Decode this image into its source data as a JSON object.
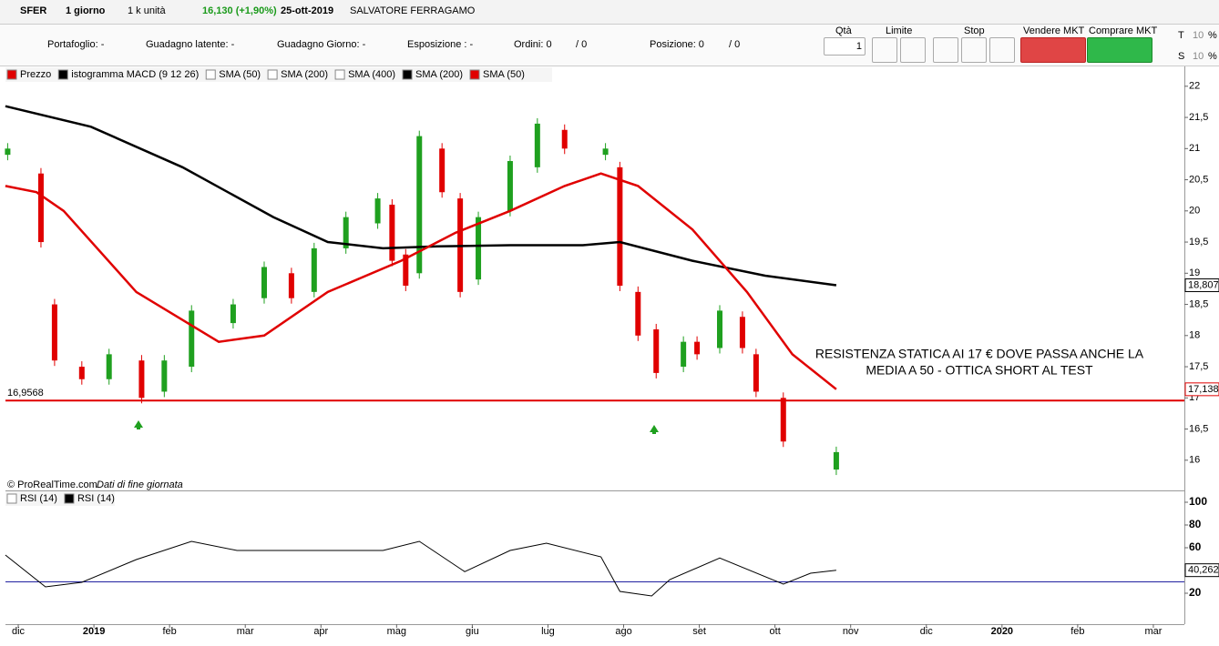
{
  "header": {
    "symbol": "SFER",
    "timeframe": "1 giorno",
    "units": "1 k unità",
    "last": "16,130 (+1,90%)",
    "date": "25-ott-2019",
    "name": "SALVATORE FERRAGAMO"
  },
  "position_bar": {
    "portfolio": "Portafoglio: -",
    "latent": "Guadagno latente: -",
    "day": "Guadagno Giorno: -",
    "exposure": "Esposizione : -",
    "orders": "Ordini: 0",
    "orders2": "/ 0",
    "position": "Posizione: 0",
    "position2": "/ 0"
  },
  "order_panel": {
    "qty_label": "Qtà",
    "qty": "1",
    "limit": "Limite",
    "stop": "Stop",
    "sell": "Vendere MKT",
    "buy": "Comprare MKT",
    "t": "T",
    "t_value": "10",
    "t_unit": "%",
    "s": "S",
    "s_value": "10",
    "s_unit": "%"
  },
  "chart_data": [
    {
      "type": "candlestick",
      "legend_items": [
        "Prezzo",
        "istogramma MACD (9 12 26)",
        "SMA (50)",
        "SMA (200)",
        "SMA (400)",
        "SMA (200)",
        "SMA (50)"
      ],
      "credits": "© ProRealTime.com",
      "credits_note": "Dati di fine giornata",
      "xlim": [
        -0.169,
        15.41
      ],
      "xticks": [
        {
          "value": 0,
          "label": "dic"
        },
        {
          "value": 1,
          "label": "2019"
        },
        {
          "value": 2,
          "label": "feb"
        },
        {
          "value": 3,
          "label": "mar"
        },
        {
          "value": 4,
          "label": "apr"
        },
        {
          "value": 5,
          "label": "mag"
        },
        {
          "value": 6,
          "label": "giu"
        },
        {
          "value": 7,
          "label": "lug"
        },
        {
          "value": 8,
          "label": "ago"
        },
        {
          "value": 9,
          "label": "set"
        },
        {
          "value": 10,
          "label": "ott"
        },
        {
          "value": 11,
          "label": "nov"
        },
        {
          "value": 12,
          "label": "dic"
        },
        {
          "value": 13,
          "label": "2020"
        },
        {
          "value": 14,
          "label": "feb"
        },
        {
          "value": 15,
          "label": "mar"
        }
      ],
      "ylim": [
        15.53,
        22.07
      ],
      "yticks": [
        16,
        {
          "value": 16.5,
          "label": "16,5"
        },
        17,
        {
          "value": 17.5,
          "label": "17,5"
        },
        18,
        {
          "value": 18.5,
          "label": "18,5"
        },
        19,
        {
          "value": 19.5,
          "label": "19,5"
        },
        20,
        {
          "value": 20.5,
          "label": "20,5"
        },
        21,
        {
          "value": 21.5,
          "label": "21,5"
        },
        22
      ],
      "series": [
        {
          "name": "Prezzo",
          "up_color": "#1fa01f",
          "down_color": "#e00000",
          "x": [
            -0.14,
            0.3,
            0.48,
            0.84,
            1.2,
            1.63,
            1.93,
            2.29,
            2.84,
            3.25,
            3.61,
            3.91,
            4.33,
            4.75,
            4.94,
            5.12,
            5.3,
            5.6,
            5.84,
            6.08,
            6.5,
            6.86,
            7.22,
            7.76,
            7.95,
            8.19,
            8.43,
            8.79,
            8.97,
            9.27,
            9.57,
            9.75,
            10.11,
            10.81
          ],
          "open": [
            20.9,
            20.6,
            18.5,
            17.5,
            17.3,
            17.6,
            17.1,
            17.5,
            18.2,
            18.6,
            19.0,
            18.7,
            19.4,
            19.8,
            20.1,
            19.3,
            19.0,
            21.0,
            20.2,
            18.9,
            20.0,
            20.7,
            21.3,
            20.9,
            20.7,
            18.7,
            18.1,
            17.5,
            17.9,
            17.8,
            18.3,
            17.7,
            17.0,
            15.85
          ],
          "close": [
            21.0,
            19.5,
            17.6,
            17.3,
            17.7,
            17.0,
            17.6,
            18.4,
            18.5,
            19.1,
            18.6,
            19.4,
            19.9,
            20.2,
            19.2,
            18.8,
            21.2,
            20.3,
            18.7,
            19.9,
            20.8,
            21.4,
            21.0,
            21.0,
            18.8,
            18.0,
            17.4,
            17.9,
            17.7,
            18.4,
            17.8,
            17.1,
            16.3,
            16.13
          ]
        },
        {
          "name": "SMA (200)",
          "color": "#000000",
          "last_label": "18,807",
          "x": [
            -0.17,
            0.96,
            2.17,
            3.37,
            4.09,
            4.82,
            5.54,
            6.5,
            7.46,
            7.95,
            8.91,
            9.87,
            10.81
          ],
          "values": [
            21.68,
            21.35,
            20.7,
            19.9,
            19.5,
            19.4,
            19.43,
            19.45,
            19.45,
            19.5,
            19.2,
            18.96,
            18.807
          ]
        },
        {
          "name": "SMA (50)",
          "color": "#e00000",
          "last_label": "17,138",
          "x": [
            -0.17,
            0.24,
            0.6,
            1.56,
            2.65,
            3.25,
            4.09,
            5.06,
            5.78,
            6.5,
            7.22,
            7.7,
            8.19,
            8.91,
            9.63,
            10.23,
            10.81
          ],
          "values": [
            20.4,
            20.3,
            20.0,
            18.7,
            17.9,
            18.0,
            18.7,
            19.2,
            19.65,
            20.0,
            20.4,
            20.6,
            20.4,
            19.7,
            18.7,
            17.7,
            17.138
          ]
        }
      ],
      "level": {
        "value": 16.9568,
        "label": "16,9568",
        "color": "#e00000"
      },
      "annotation": [
        "RESISTENZA STATICA AI 17 € DOVE PASSA ANCHE LA",
        "MEDIA A 50 - OTTICA SHORT AL TEST"
      ]
    },
    {
      "type": "line",
      "legend_items": [
        "RSI (14)"
      ],
      "xlim": [
        -0.169,
        15.41
      ],
      "ylim": [
        -6.4,
        108.8
      ],
      "yticks": [
        20,
        40,
        60,
        80,
        100
      ],
      "series": [
        {
          "name": "RSI (14)",
          "color": "#000000",
          "last_label": "40,262",
          "x": [
            -0.17,
            0.36,
            0.84,
            1.56,
            2.29,
            2.89,
            3.85,
            4.82,
            5.3,
            5.9,
            6.5,
            6.98,
            7.7,
            7.95,
            8.37,
            8.61,
            9.27,
            10.11,
            10.47,
            10.81
          ],
          "values": [
            53.6,
            25.6,
            29.6,
            49.6,
            65.6,
            57.6,
            57.6,
            57.6,
            65.6,
            39,
            57.6,
            64,
            52,
            21.6,
            17.6,
            32,
            51,
            28,
            37.6,
            40.262
          ]
        }
      ],
      "level": {
        "value": 30,
        "color": "#2020a0"
      }
    }
  ]
}
